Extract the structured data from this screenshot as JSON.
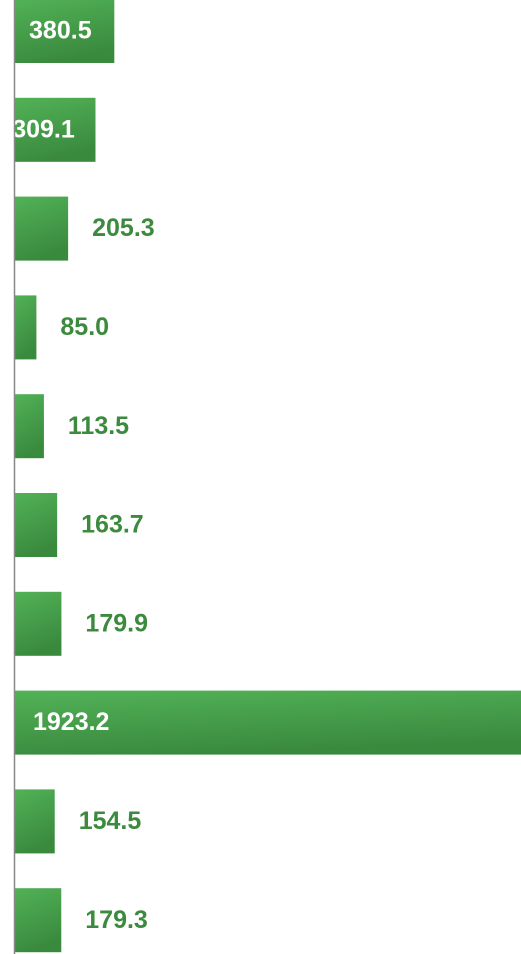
{
  "chart_data": {
    "type": "bar",
    "orientation": "horizontal",
    "values": [
      380.5,
      309.1,
      205.3,
      85.0,
      113.5,
      163.7,
      179.9,
      1923.2,
      154.5,
      179.3
    ],
    "value_labels": [
      "380.5",
      "309.1",
      "205.3",
      "85.0",
      "113.5",
      "163.7",
      "179.9",
      "1923.2",
      "154.5",
      "179.3"
    ],
    "color": "#43a047"
  }
}
